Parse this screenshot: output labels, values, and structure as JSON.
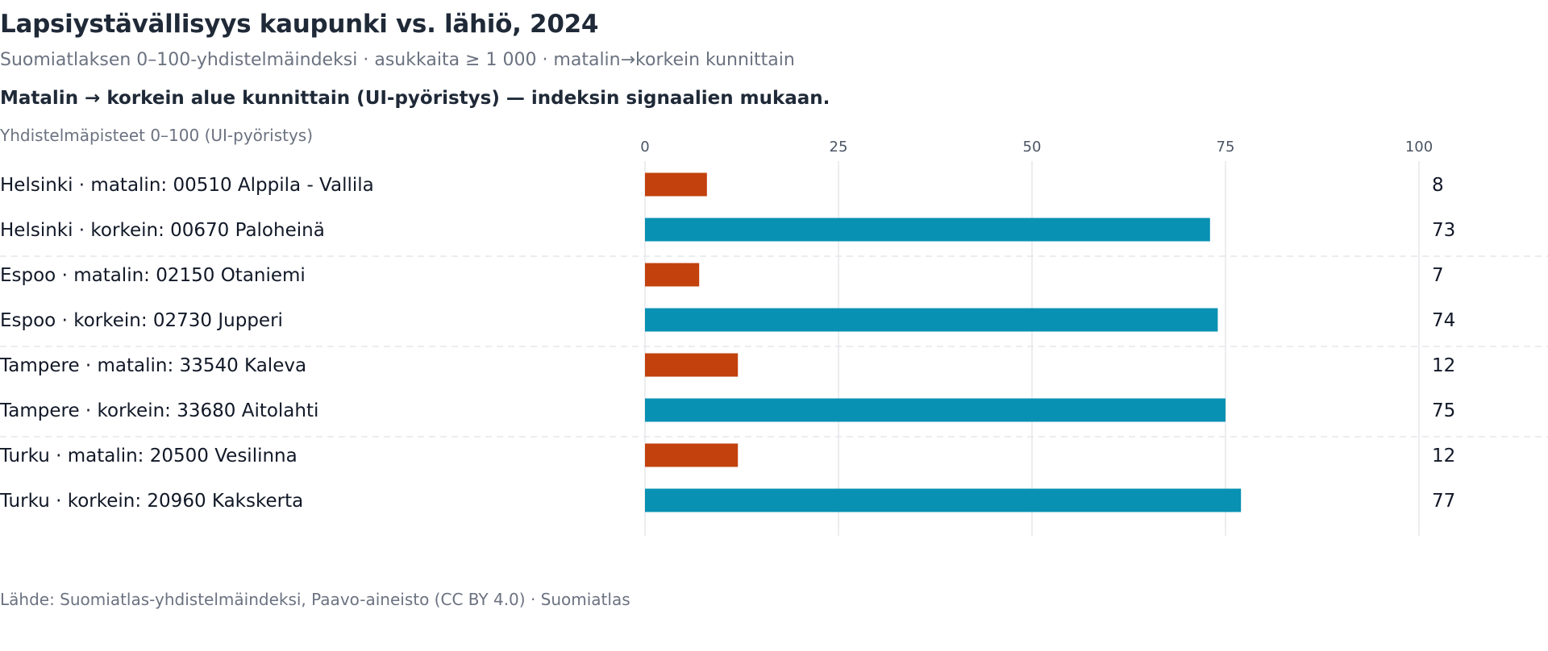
{
  "header": {
    "title": "Lapsiystävällisyys kaupunki vs. lähiö, 2024",
    "subtitle": "Suomiatlaksen 0–100-yhdistelmäindeksi · asukkaita ≥ 1 000 · matalin→korkein kunnittain",
    "lead": "Matalin → korkein alue kunnittain (UI-pyöristys) — indeksin signaalien mukaan."
  },
  "footer": {
    "source": "Lähde: Suomiatlas-yhdistelmäindeksi, Paavo-aineisto (CC BY 4.0) · Suomiatlas"
  },
  "colors": {
    "low": "#c2410c",
    "high": "#0891b2"
  },
  "chart_data": {
    "type": "bar",
    "orientation": "horizontal",
    "xlabel": "Yhdistelmäpisteet 0–100 (UI-pyöristys)",
    "xlim": [
      0,
      100
    ],
    "xticks": [
      "0",
      "25",
      "50",
      "75",
      "100"
    ],
    "grid": true,
    "categories": [
      "Helsinki · matalin: 00510 Alppila - Vallila",
      "Helsinki · korkein: 00670 Paloheinä",
      "Espoo · matalin: 02150 Otaniemi",
      "Espoo · korkein: 02730 Jupperi",
      "Tampere · matalin: 33540 Kaleva",
      "Tampere · korkein: 33680 Aitolahti",
      "Turku · matalin: 20500 Vesilinna",
      "Turku · korkein: 20960 Kakskerta"
    ],
    "values": [
      8,
      73,
      7,
      74,
      12,
      75,
      12,
      77
    ],
    "value_labels": [
      "8",
      "73",
      "7",
      "74",
      "12",
      "75",
      "12",
      "77"
    ],
    "kind": [
      "low",
      "high",
      "low",
      "high",
      "low",
      "high",
      "low",
      "high"
    ]
  }
}
